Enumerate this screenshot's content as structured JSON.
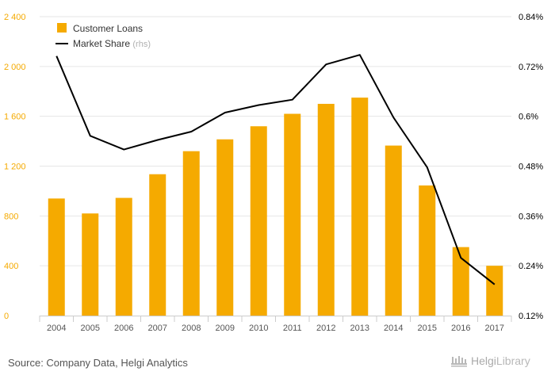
{
  "colors": {
    "bar": "#F5AA00",
    "line": "#000000",
    "left_axis_text": "#F5AA00",
    "right_axis_text": "#000000",
    "grid": "#E6E6E6",
    "axis_line": "#CCCCCC",
    "source_text": "#555555",
    "brand_text": "#AAAAAA"
  },
  "chart_data": {
    "type": "bar",
    "categories": [
      "2004",
      "2005",
      "2006",
      "2007",
      "2008",
      "2009",
      "2010",
      "2011",
      "2012",
      "2013",
      "2014",
      "2015",
      "2016",
      "2017"
    ],
    "series": [
      {
        "name": "Customer Loans",
        "type": "bar",
        "axis": "left",
        "values": [
          940,
          820,
          945,
          1135,
          1320,
          1415,
          1520,
          1620,
          1700,
          1750,
          1365,
          1045,
          550,
          400
        ]
      },
      {
        "name": "Market Share",
        "name_suffix": "(rhs)",
        "type": "line",
        "axis": "right",
        "values": [
          0.745,
          0.553,
          0.52,
          0.543,
          0.563,
          0.609,
          0.627,
          0.64,
          0.725,
          0.748,
          0.597,
          0.477,
          0.259,
          0.195
        ]
      }
    ],
    "left_axis": {
      "ylim": [
        0,
        2400
      ],
      "ticks": [
        0,
        400,
        800,
        1200,
        1600,
        2000,
        2400
      ],
      "tick_labels": [
        "0",
        "400",
        "800",
        "1 200",
        "1 600",
        "2 000",
        "2 400"
      ]
    },
    "right_axis": {
      "ylim": [
        0.12,
        0.84
      ],
      "ticks": [
        0.12,
        0.24,
        0.36,
        0.48,
        0.6,
        0.72,
        0.84
      ],
      "tick_labels": [
        "0.12%",
        "0.24%",
        "0.36%",
        "0.48%",
        "0.6%",
        "0.72%",
        "0.84%"
      ]
    },
    "grid": true,
    "legend_position": "top-left"
  },
  "footer": {
    "source": "Source: Company Data, Helgi Analytics",
    "brand_name": "Helgi",
    "brand_suffix": "Library"
  }
}
